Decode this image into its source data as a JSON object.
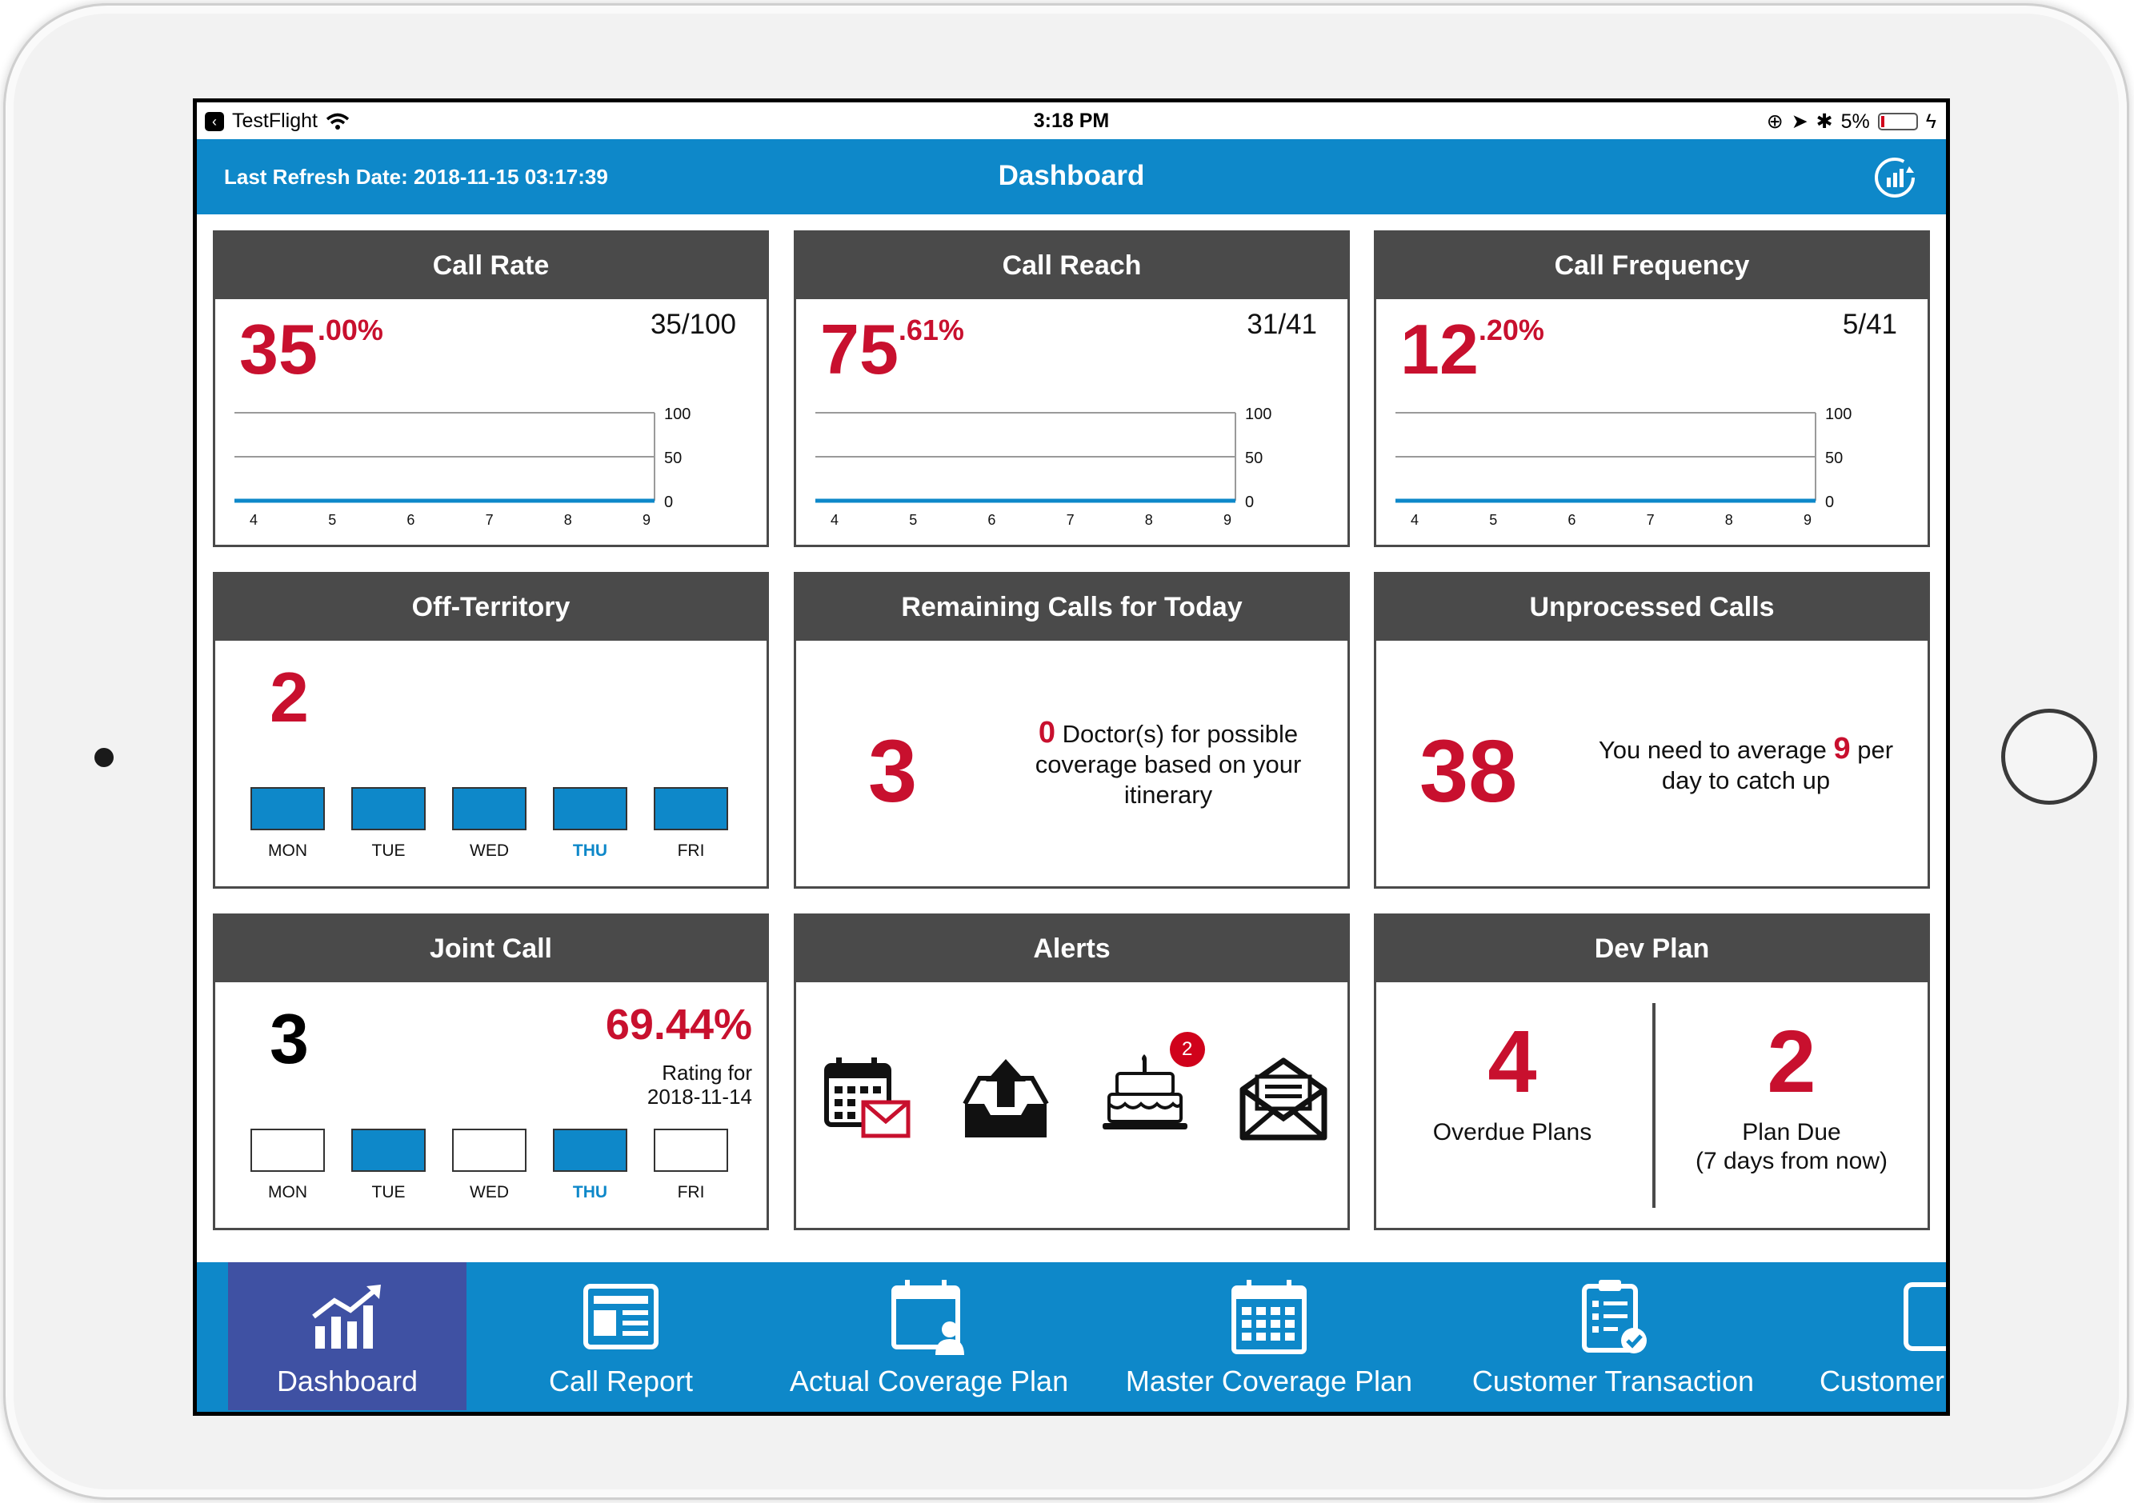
{
  "status_bar": {
    "back_app": "TestFlight",
    "time": "3:18 PM",
    "battery": "5%"
  },
  "header": {
    "last_refresh": "Last Refresh Date: 2018-11-15 03:17:39",
    "title": "Dashboard"
  },
  "call_rate": {
    "title": "Call Rate",
    "value_int": "35",
    "value_dec": ".00%",
    "fraction": "35/100",
    "chart_data": {
      "type": "line",
      "x": [
        4,
        5,
        6,
        7,
        8,
        9
      ],
      "values": [
        0,
        0,
        0,
        0,
        0,
        0
      ],
      "ylim": [
        0,
        100
      ],
      "yticks": [
        0,
        50,
        100
      ]
    }
  },
  "call_reach": {
    "title": "Call Reach",
    "value_int": "75",
    "value_dec": ".61%",
    "fraction": "31/41",
    "chart_data": {
      "type": "line",
      "x": [
        4,
        5,
        6,
        7,
        8,
        9
      ],
      "values": [
        0,
        0,
        0,
        0,
        0,
        0
      ],
      "ylim": [
        0,
        100
      ],
      "yticks": [
        0,
        50,
        100
      ]
    }
  },
  "call_frequency": {
    "title": "Call Frequency",
    "value_int": "12",
    "value_dec": ".20%",
    "fraction": "5/41",
    "chart_data": {
      "type": "line",
      "x": [
        4,
        5,
        6,
        7,
        8,
        9
      ],
      "values": [
        0,
        0,
        0,
        0,
        0,
        0
      ],
      "ylim": [
        0,
        100
      ],
      "yticks": [
        0,
        50,
        100
      ]
    }
  },
  "off_territory": {
    "title": "Off-Territory",
    "value": "2",
    "days": [
      {
        "label": "MON",
        "on": true
      },
      {
        "label": "TUE",
        "on": true
      },
      {
        "label": "WED",
        "on": true
      },
      {
        "label": "THU",
        "on": true,
        "today": true
      },
      {
        "label": "FRI",
        "on": true
      }
    ]
  },
  "remaining_calls": {
    "title": "Remaining Calls for Today",
    "value": "3",
    "doctors": "0",
    "text": "Doctor(s) for possible coverage based on your itinerary"
  },
  "unprocessed_calls": {
    "title": "Unprocessed Calls",
    "value": "38",
    "text_before": "You need to average",
    "avg": "9",
    "text_after": "per day to catch up"
  },
  "joint_call": {
    "title": "Joint Call",
    "value": "3",
    "rating_pct": "69.44%",
    "rating_label": "Rating for",
    "rating_date": "2018-11-14",
    "days": [
      {
        "label": "MON",
        "on": false
      },
      {
        "label": "TUE",
        "on": true
      },
      {
        "label": "WED",
        "on": false
      },
      {
        "label": "THU",
        "on": true,
        "today": true
      },
      {
        "label": "FRI",
        "on": false
      }
    ]
  },
  "alerts": {
    "title": "Alerts",
    "birthday_badge": "2"
  },
  "dev_plan": {
    "title": "Dev Plan",
    "overdue": "4",
    "overdue_label": "Overdue Plans",
    "due": "2",
    "due_label": "Plan Due",
    "due_sub": "(7 days from now)"
  },
  "tabs": [
    {
      "label": "Dashboard",
      "icon": "chart-icon"
    },
    {
      "label": "Call Report",
      "icon": "report-icon"
    },
    {
      "label": "Actual Coverage Plan",
      "icon": "calendar-user-icon"
    },
    {
      "label": "Master Coverage Plan",
      "icon": "calendar-grid-icon"
    },
    {
      "label": "Customer Transaction",
      "icon": "clipboard-check-icon"
    },
    {
      "label": "Customer",
      "icon": "customer-icon"
    }
  ],
  "colors": {
    "primary": "#0e88c9",
    "accent_red": "#c8102e",
    "card_header": "#4a4a4a",
    "active_tab": "#3f51a3"
  }
}
